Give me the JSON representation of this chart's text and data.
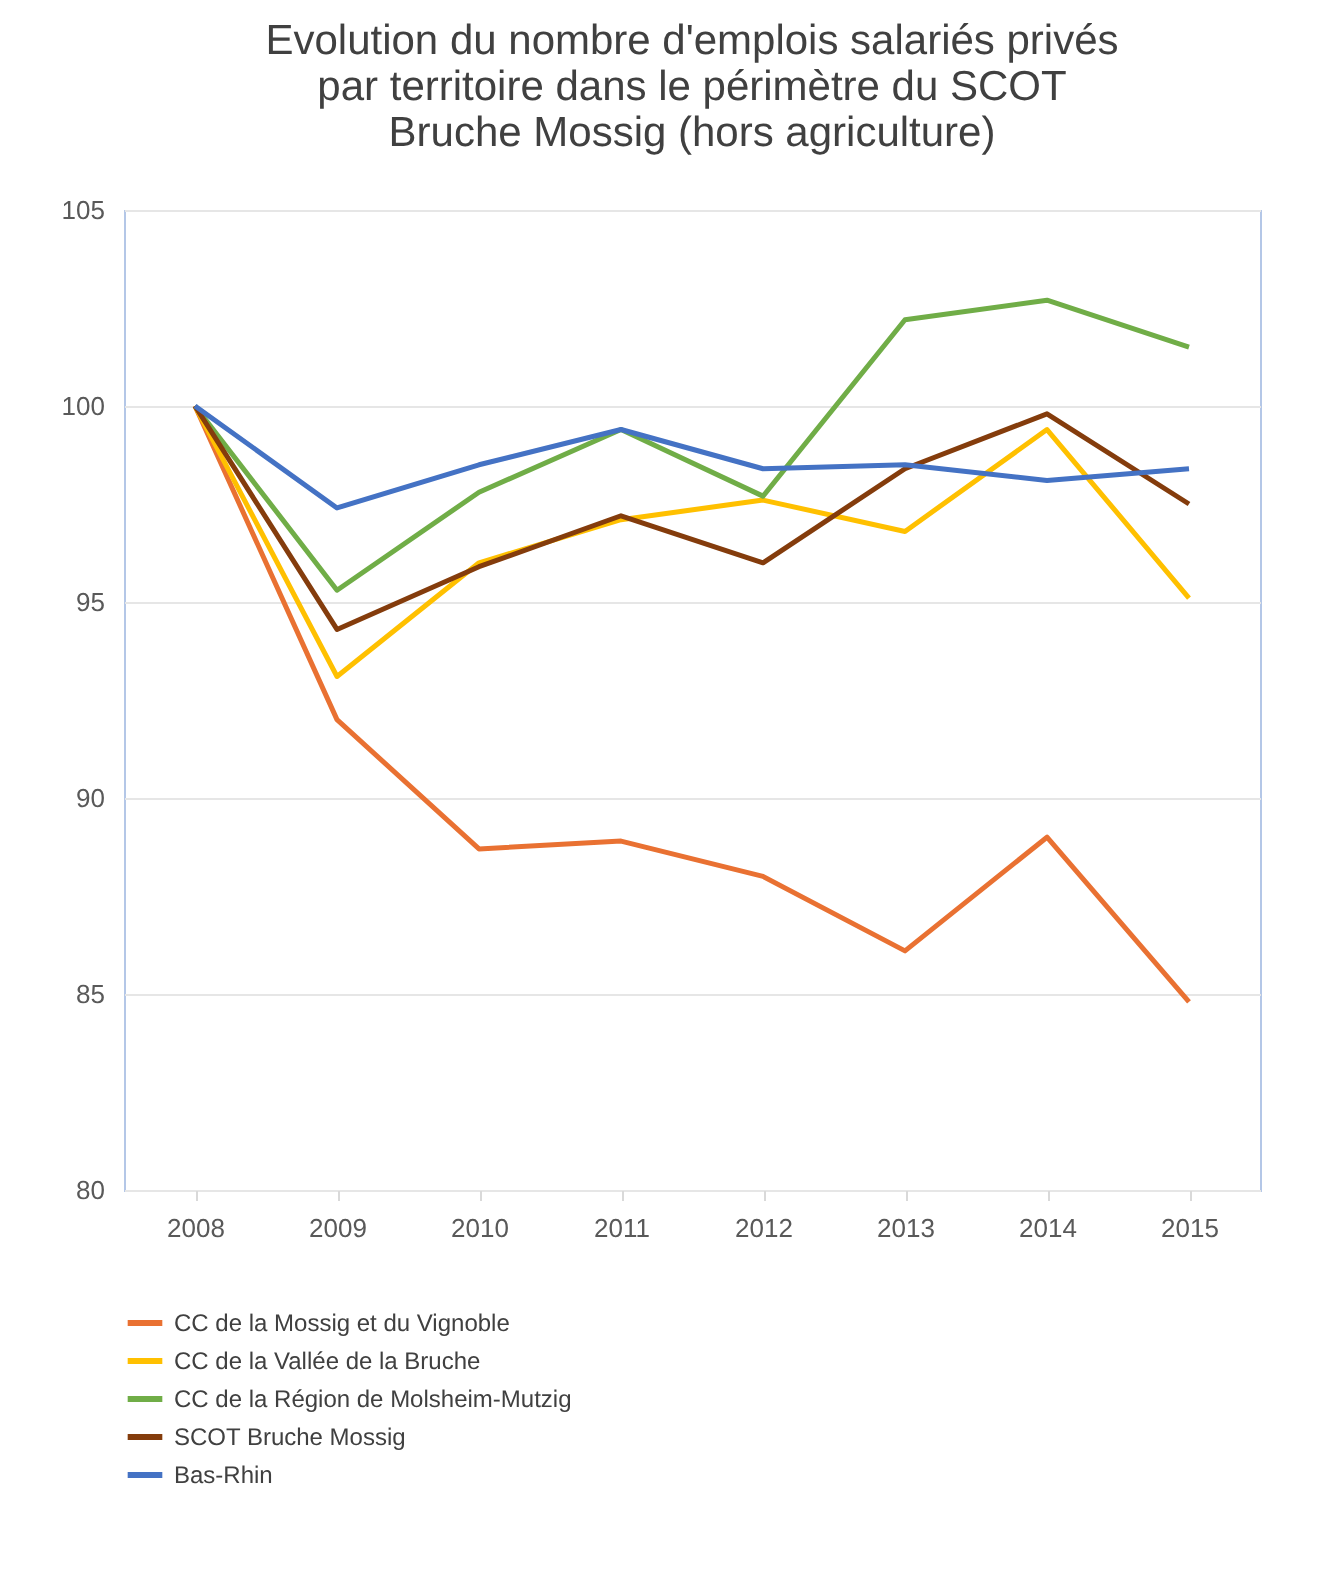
{
  "chart_data": {
    "type": "line",
    "title": [
      "Evolution du nombre d'emplois salariés privés",
      "par territoire dans le périmètre du SCOT",
      "Bruche Mossig (hors agriculture)"
    ],
    "categories": [
      "2008",
      "2009",
      "2010",
      "2011",
      "2012",
      "2013",
      "2014",
      "2015"
    ],
    "series": [
      {
        "name": "CC de la Mossig et du Vignoble",
        "color": "#e97132",
        "values": [
          100,
          92.0,
          88.7,
          88.9,
          88.0,
          86.1,
          89.0,
          84.8
        ]
      },
      {
        "name": "CC de la Vallée de la Bruche",
        "color": "#ffc000",
        "values": [
          100,
          93.1,
          96.0,
          97.1,
          97.6,
          96.8,
          99.4,
          95.1
        ]
      },
      {
        "name": "CC de la Région de Molsheim-Mutzig",
        "color": "#70ad47",
        "values": [
          100,
          95.3,
          97.8,
          99.4,
          97.7,
          102.2,
          102.7,
          101.5
        ]
      },
      {
        "name": "SCOT Bruche Mossig",
        "color": "#843c0c",
        "values": [
          100,
          94.3,
          95.9,
          97.2,
          96.0,
          98.4,
          99.8,
          97.5
        ]
      },
      {
        "name": "Bas-Rhin",
        "color": "#4472c4",
        "values": [
          100,
          97.4,
          98.5,
          99.4,
          98.4,
          98.5,
          98.1,
          98.4
        ]
      }
    ],
    "ylim": [
      80,
      105
    ],
    "yticks": [
      80,
      85,
      90,
      95,
      100,
      105
    ],
    "grid": "y",
    "legend": "bottom",
    "line_style": "solid"
  }
}
